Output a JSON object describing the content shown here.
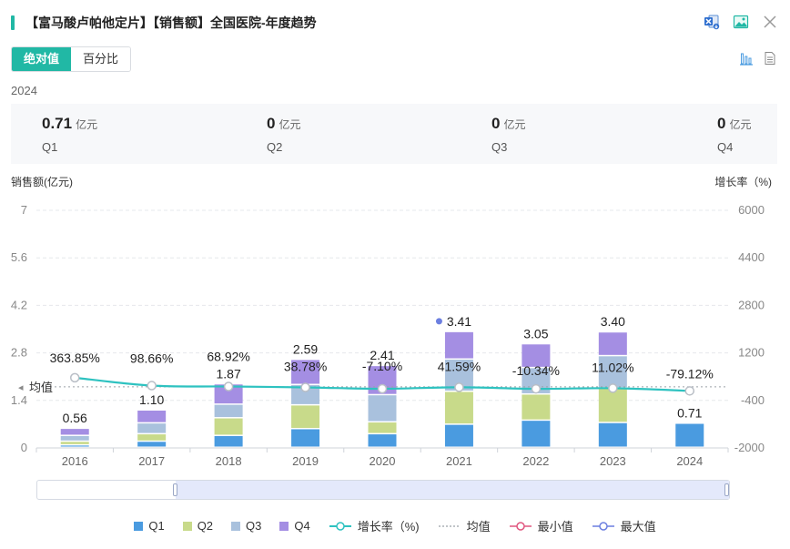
{
  "header": {
    "title": "【富马酸卢帕他定片】【销售额】全国医院-年度趋势"
  },
  "toolbar": {
    "icons": [
      "excel-export-icon",
      "image-export-icon",
      "close-icon"
    ],
    "view_icons": [
      "bar-chart-view-icon",
      "table-view-icon"
    ]
  },
  "toggle": {
    "absolute_label": "绝对值",
    "percent_label": "百分比",
    "selected": "绝对值"
  },
  "kpi": {
    "year": "2024",
    "items": [
      {
        "value": "0.71",
        "unit": "亿元",
        "quarter": "Q1"
      },
      {
        "value": "0",
        "unit": "亿元",
        "quarter": "Q2"
      },
      {
        "value": "0",
        "unit": "亿元",
        "quarter": "Q3"
      },
      {
        "value": "0",
        "unit": "亿元",
        "quarter": "Q4"
      }
    ]
  },
  "colors": {
    "accent": "#21b8a5",
    "q1": "#4a9be0",
    "q2": "#c8da8a",
    "q3": "#a9c1dd",
    "q4": "#a48ee3",
    "growth_line": "#2ec2c0",
    "avg_line": "#9aa0a8",
    "min": "#e0567f",
    "max": "#6c7fe0"
  },
  "chart_data": {
    "type": "bar",
    "stacked": true,
    "categories": [
      "2016",
      "2017",
      "2018",
      "2019",
      "2020",
      "2021",
      "2022",
      "2023",
      "2024"
    ],
    "series": [
      {
        "name": "Q1",
        "values": [
          0.07,
          0.18,
          0.35,
          0.55,
          0.4,
          0.68,
          0.8,
          0.73,
          0.71
        ]
      },
      {
        "name": "Q2",
        "values": [
          0.11,
          0.22,
          0.52,
          0.7,
          0.35,
          0.97,
          0.77,
          1.02,
          0
        ]
      },
      {
        "name": "Q3",
        "values": [
          0.17,
          0.32,
          0.4,
          0.6,
          0.8,
          0.95,
          0.78,
          0.95,
          0
        ]
      },
      {
        "name": "Q4",
        "values": [
          0.21,
          0.38,
          0.6,
          0.74,
          0.86,
          0.81,
          0.7,
          0.7,
          0
        ]
      }
    ],
    "totals": [
      0.56,
      1.1,
      1.87,
      2.59,
      2.41,
      3.41,
      3.05,
      3.4,
      0.71
    ],
    "total_labels": [
      "0.56",
      "1.10",
      "1.87",
      "2.59",
      "2.41",
      "3.41",
      "3.05",
      "3.40",
      "0.71"
    ],
    "growth_rate": {
      "name": "增长率（%)",
      "values": [
        363.85,
        98.66,
        68.92,
        38.78,
        -7.1,
        41.59,
        -10.34,
        11.02,
        -79.12
      ],
      "labels": [
        "363.85%",
        "98.66%",
        "68.92%",
        "38.78%",
        "-7.10%",
        "41.59%",
        "-10.34%",
        "11.02%",
        "-79.12%"
      ]
    },
    "average_label": "均值",
    "average_value": 58.47,
    "max_marker_category": "2021",
    "y_left": {
      "title": "销售额(亿元)",
      "min": 0,
      "max": 7,
      "ticks": [
        "0",
        "1.4",
        "2.8",
        "4.2",
        "5.6",
        "7"
      ]
    },
    "y_right": {
      "title": "增长率（%)",
      "min": -2000,
      "max": 6000,
      "ticks": [
        "-2000",
        "-400",
        "1200",
        "2800",
        "4400",
        "6000"
      ]
    },
    "legend": [
      {
        "key": "q1",
        "label": "Q1"
      },
      {
        "key": "q2",
        "label": "Q2"
      },
      {
        "key": "q3",
        "label": "Q3"
      },
      {
        "key": "q4",
        "label": "Q4"
      },
      {
        "key": "growth",
        "label": "增长率（%)"
      },
      {
        "key": "avg",
        "label": "均值"
      },
      {
        "key": "min",
        "label": "最小值"
      },
      {
        "key": "max",
        "label": "最大值"
      }
    ]
  }
}
